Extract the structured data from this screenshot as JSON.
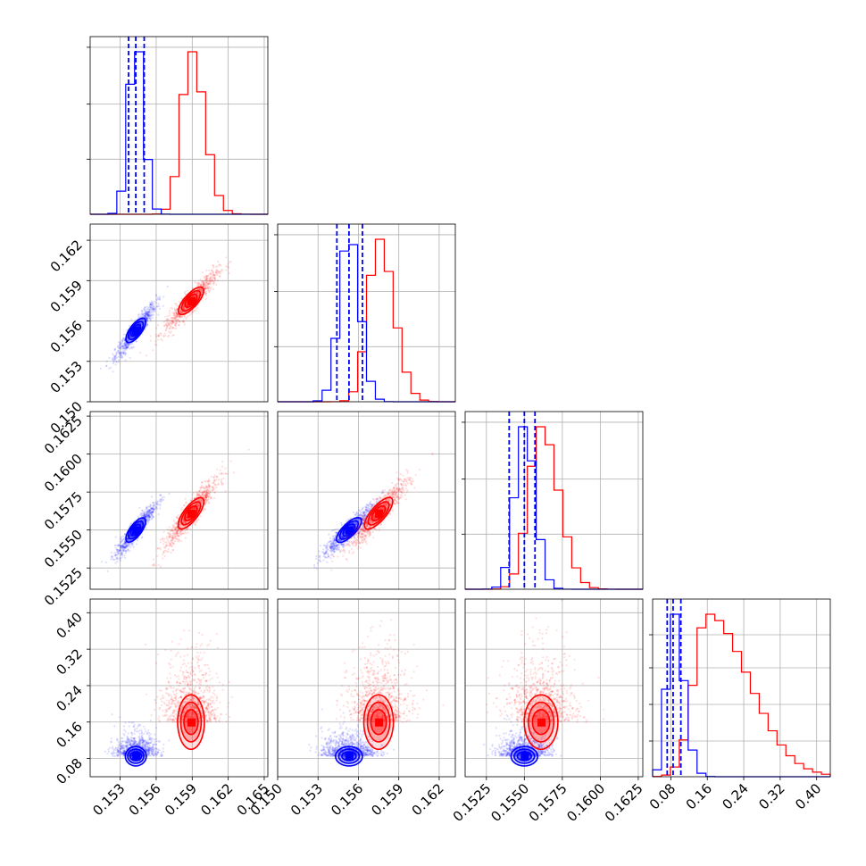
{
  "chart_data": {
    "type": "corner",
    "title": "",
    "grid": true,
    "colors": {
      "blue": "#0000ff",
      "red": "#ff0000"
    },
    "parameters": [
      {
        "xlim": [
          0.1505,
          0.1653
        ],
        "ticks": [
          "0.153",
          "0.156",
          "0.159",
          "0.162",
          "0.165"
        ],
        "tick_values": [
          0.153,
          0.156,
          0.159,
          0.162,
          0.165
        ]
      },
      {
        "xlim": [
          0.15,
          0.1632
        ],
        "ticks": [
          "0.150",
          "0.153",
          "0.156",
          "0.159",
          "0.162"
        ],
        "tick_values": [
          0.15,
          0.153,
          0.156,
          0.159,
          0.162
        ]
      },
      {
        "xlim": [
          0.1511,
          0.1628
        ],
        "ticks": [
          "0.1525",
          "0.1550",
          "0.1575",
          "0.1600",
          "0.1625"
        ],
        "tick_values": [
          0.1525,
          0.155,
          0.1575,
          0.16,
          0.1625
        ]
      },
      {
        "xlim": [
          0.04,
          0.43
        ],
        "ticks": [
          "0.08",
          "0.16",
          "0.24",
          "0.32",
          "0.40"
        ],
        "tick_values": [
          0.08,
          0.16,
          0.24,
          0.32,
          0.4
        ]
      }
    ],
    "y_ticks": {
      "row1": [
        "0.150",
        "0.153",
        "0.156",
        "0.159",
        "0.162"
      ],
      "row2": [
        "0.1525",
        "0.1550",
        "0.1575",
        "0.1600",
        "0.1625"
      ],
      "row3": [
        "0.08",
        "0.16",
        "0.24",
        "0.32",
        "0.40"
      ]
    },
    "series": [
      {
        "color": "#0000ff",
        "centers": [
          0.1543,
          0.1553,
          0.155,
          0.085
        ],
        "sigmas": [
          0.0006,
          0.00072,
          0.00063,
          0.015
        ],
        "quantiles": [
          [
            0.1537,
            0.1543,
            0.155
          ],
          [
            0.1544,
            0.1553,
            0.1563
          ],
          [
            0.154,
            0.155,
            0.1557
          ],
          [
            0.072,
            0.085,
            0.102
          ]
        ],
        "hist_peaks": [
          1.0,
          0.9,
          1.0,
          1.0
        ]
      },
      {
        "color": "#ff0000",
        "centers": [
          0.1589,
          0.1575,
          0.1561,
          0.16
        ],
        "sigmas": [
          0.0008,
          0.0008,
          0.00082,
          0.045
        ],
        "hist_peaks": [
          1.0,
          1.0,
          1.0,
          1.0
        ]
      }
    ]
  }
}
